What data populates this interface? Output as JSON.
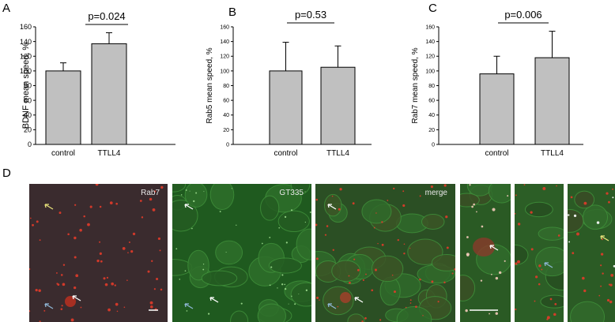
{
  "panels": {
    "a": "A",
    "b": "B",
    "c": "C",
    "d": "D"
  },
  "chart_data": [
    {
      "type": "bar",
      "categories": [
        "control",
        "TTLL4"
      ],
      "values": [
        100,
        137
      ],
      "errors": [
        11,
        15
      ],
      "ylabel": "BDNF mean speed, %",
      "ylim": [
        0,
        160
      ],
      "yticks": [
        0,
        20,
        40,
        60,
        80,
        100,
        120,
        140,
        160
      ],
      "annotation": "p=0.024",
      "bar_color": "#c0c0c0"
    },
    {
      "type": "bar",
      "categories": [
        "control",
        "TTLL4"
      ],
      "values": [
        100,
        105
      ],
      "errors": [
        39,
        29
      ],
      "ylabel": "Rab5 mean speed, %",
      "ylim": [
        0,
        160
      ],
      "yticks": [
        0,
        20,
        40,
        60,
        80,
        100,
        120,
        140,
        160
      ],
      "annotation": "p=0.53",
      "bar_color": "#c0c0c0"
    },
    {
      "type": "bar",
      "categories": [
        "control",
        "TTLL4"
      ],
      "values": [
        96,
        118
      ],
      "errors": [
        24,
        36
      ],
      "ylabel": "Rab7 mean speed, %",
      "ylim": [
        0,
        160
      ],
      "yticks": [
        0,
        20,
        40,
        60,
        80,
        100,
        120,
        140,
        160
      ],
      "annotation": "p=0.006",
      "bar_color": "#c0c0c0"
    }
  ],
  "micrographs": {
    "labels": [
      "Rab7",
      "GT335",
      "merge"
    ],
    "colors": {
      "rab7_bg": "#3a2b2e",
      "gt335_bg": "#1f5a1f",
      "merge_bg": "#2b4f24",
      "red_signal": "#e23b2a",
      "arrow_white": "#ffffff",
      "arrow_blue": "#8fb7d6",
      "arrow_yellow": "#e8e27a"
    }
  }
}
